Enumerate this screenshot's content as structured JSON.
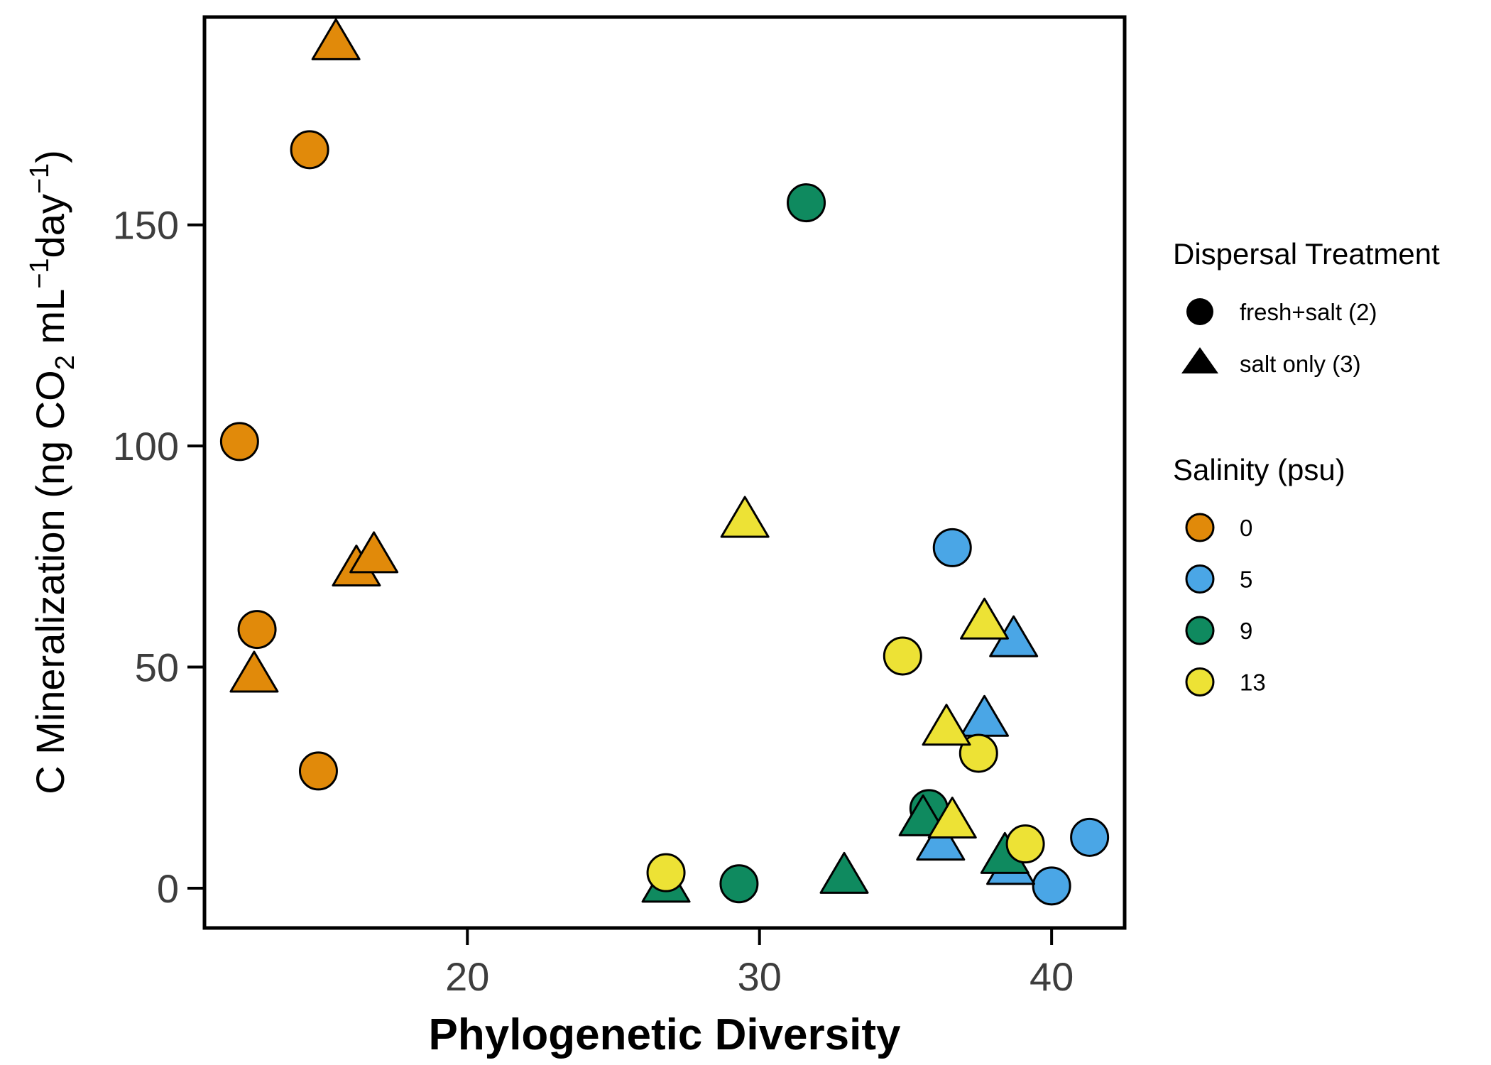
{
  "chart_data": {
    "type": "scatter",
    "xlabel": "Phylogenetic Diversity",
    "ylabel": {
      "prefix": "C Mineralization (ng CO",
      "co2_sub": "2",
      "mid": " mL",
      "ml_exp": "−1",
      "day": "day",
      "day_exp": "−1",
      "close": ")"
    },
    "xlim": [
      11,
      42.5
    ],
    "ylim": [
      -9,
      197
    ],
    "x_ticks": [
      20,
      30,
      40
    ],
    "x_tick_labels": [
      "20",
      "30",
      "40"
    ],
    "y_ticks": [
      0,
      50,
      100,
      150
    ],
    "y_tick_labels": [
      "0",
      "50",
      "100",
      "150"
    ],
    "grid": false,
    "legend": {
      "placement": "right",
      "shape_title": "Dispersal Treatment",
      "shape_items": [
        {
          "key": "circle",
          "label": "fresh+salt (2)"
        },
        {
          "key": "triangle",
          "label": "salt only (3)"
        }
      ],
      "color_title": "Salinity (psu)",
      "color_items": [
        {
          "key": "0",
          "label": "0",
          "color": "#E18A0A"
        },
        {
          "key": "5",
          "label": "5",
          "color": "#4AA6E6"
        },
        {
          "key": "9",
          "label": "9",
          "color": "#0F8A5F"
        },
        {
          "key": "13",
          "label": "13",
          "color": "#EDE235"
        }
      ]
    },
    "points": [
      {
        "x": 12.2,
        "y": 101,
        "shape": "circle",
        "salinity": "0"
      },
      {
        "x": 14.6,
        "y": 167,
        "shape": "circle",
        "salinity": "0"
      },
      {
        "x": 12.8,
        "y": 58.5,
        "shape": "circle",
        "salinity": "0"
      },
      {
        "x": 14.9,
        "y": 26.5,
        "shape": "circle",
        "salinity": "0"
      },
      {
        "x": 15.5,
        "y": 191,
        "shape": "triangle",
        "salinity": "0"
      },
      {
        "x": 16.2,
        "y": 72,
        "shape": "triangle",
        "salinity": "0"
      },
      {
        "x": 16.8,
        "y": 75,
        "shape": "triangle",
        "salinity": "0"
      },
      {
        "x": 12.7,
        "y": 48,
        "shape": "triangle",
        "salinity": "0"
      },
      {
        "x": 36.6,
        "y": 77,
        "shape": "circle",
        "salinity": "5"
      },
      {
        "x": 40.0,
        "y": 0.5,
        "shape": "circle",
        "salinity": "5"
      },
      {
        "x": 41.3,
        "y": 11.5,
        "shape": "circle",
        "salinity": "5"
      },
      {
        "x": 38.7,
        "y": 56,
        "shape": "triangle",
        "salinity": "5"
      },
      {
        "x": 37.7,
        "y": 38,
        "shape": "triangle",
        "salinity": "5"
      },
      {
        "x": 36.2,
        "y": 10,
        "shape": "triangle",
        "salinity": "5"
      },
      {
        "x": 38.6,
        "y": 4.5,
        "shape": "triangle",
        "salinity": "5"
      },
      {
        "x": 31.6,
        "y": 155,
        "shape": "circle",
        "salinity": "9"
      },
      {
        "x": 29.3,
        "y": 1,
        "shape": "circle",
        "salinity": "9"
      },
      {
        "x": 35.8,
        "y": 18,
        "shape": "circle",
        "salinity": "9"
      },
      {
        "x": 26.8,
        "y": 0.5,
        "shape": "triangle",
        "salinity": "9"
      },
      {
        "x": 32.9,
        "y": 2.5,
        "shape": "triangle",
        "salinity": "9"
      },
      {
        "x": 35.6,
        "y": 15.5,
        "shape": "triangle",
        "salinity": "9"
      },
      {
        "x": 38.4,
        "y": 7,
        "shape": "triangle",
        "salinity": "9"
      },
      {
        "x": 34.9,
        "y": 52.5,
        "shape": "circle",
        "salinity": "13"
      },
      {
        "x": 37.5,
        "y": 30.5,
        "shape": "circle",
        "salinity": "13"
      },
      {
        "x": 26.8,
        "y": 3.5,
        "shape": "circle",
        "salinity": "13"
      },
      {
        "x": 39.1,
        "y": 10,
        "shape": "circle",
        "salinity": "13"
      },
      {
        "x": 29.5,
        "y": 83,
        "shape": "triangle",
        "salinity": "13"
      },
      {
        "x": 37.7,
        "y": 60,
        "shape": "triangle",
        "salinity": "13"
      },
      {
        "x": 36.4,
        "y": 36,
        "shape": "triangle",
        "salinity": "13"
      },
      {
        "x": 36.6,
        "y": 15,
        "shape": "triangle",
        "salinity": "13"
      }
    ]
  }
}
